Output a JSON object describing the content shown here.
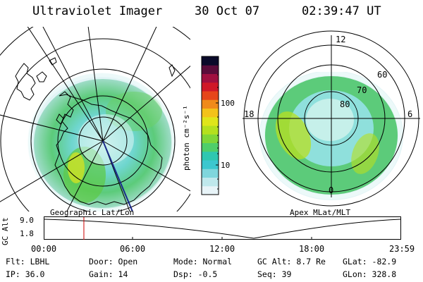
{
  "header": {
    "title": "Ultraviolet Imager",
    "date": "30 Oct 07",
    "time": "02:39:47 UT"
  },
  "left_map": {
    "caption": "Geographic Lat/Lon"
  },
  "right_map": {
    "caption": "Apex MLat/MLT",
    "mlt_labels": {
      "top": "12",
      "right": "6",
      "bottom": "0",
      "left": "18"
    },
    "lat_labels": [
      "60",
      "70",
      "80"
    ]
  },
  "colorbar": {
    "unit_label": "photon cm⁻²s⁻¹",
    "tick_100": "100",
    "tick_10": "10",
    "colors": [
      "#e8f4f8",
      "#bfe8ec",
      "#7fd6dc",
      "#3cc7cf",
      "#2fc7b0",
      "#4fce6a",
      "#7fd638",
      "#b4e01e",
      "#dfe51a",
      "#f3c21a",
      "#f08a1a",
      "#e6461a",
      "#d01828",
      "#a01040",
      "#5a0c3a",
      "#0a0a2a"
    ]
  },
  "altitude_plot": {
    "ylabel": "GC Alt",
    "yticks": [
      "9.0",
      "1.8"
    ],
    "xticks": [
      "00:00",
      "06:00",
      "12:00",
      "18:00",
      "23:59"
    ],
    "current_hour": 2.66,
    "line_color": "#cc0000"
  },
  "status": {
    "flt": "Flt: LBHL",
    "door": "Door: Open",
    "mode": "Mode: Normal",
    "gc_alt": "GC Alt: 8.7 Re",
    "glat": "GLat: -82.9",
    "ip": "IP: 36.0",
    "gain": "Gain: 14",
    "dsp": "Dsp:    -0.5",
    "seq": "Seq: 39",
    "glon": "GLon: 328.8"
  }
}
